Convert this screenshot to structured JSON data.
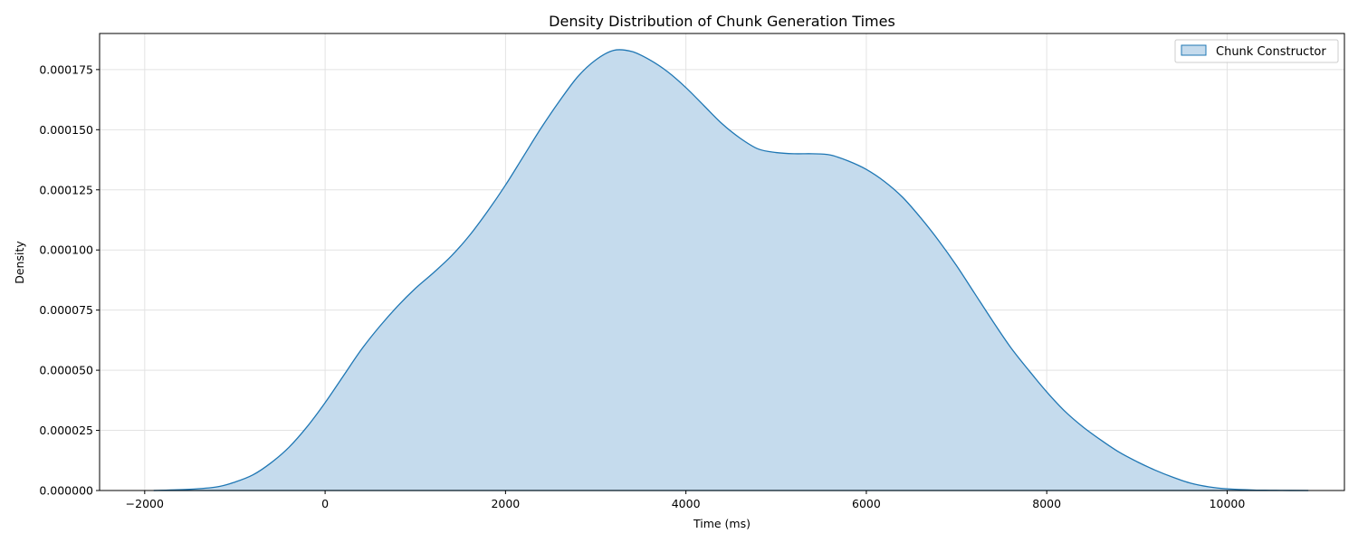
{
  "chart_data": {
    "type": "area",
    "title": "Density Distribution of Chunk Generation Times",
    "xlabel": "Time (ms)",
    "ylabel": "Density",
    "xlim": [
      -2500,
      11300
    ],
    "ylim": [
      0,
      0.00019
    ],
    "grid": true,
    "legend_position": "top-right",
    "x_ticks": [
      -2000,
      0,
      2000,
      4000,
      6000,
      8000,
      10000
    ],
    "x_tick_labels": [
      "−2000",
      "0",
      "2000",
      "4000",
      "6000",
      "8000",
      "10000"
    ],
    "y_ticks": [
      0,
      2.5e-05,
      5e-05,
      7.5e-05,
      0.0001,
      0.000125,
      0.00015,
      0.000175
    ],
    "y_tick_labels": [
      "0.000000",
      "0.000025",
      "0.000050",
      "0.000075",
      "0.000100",
      "0.000125",
      "0.000150",
      "0.000175"
    ],
    "series": [
      {
        "name": "Chunk Constructor",
        "color": "#1f77b4",
        "fill_color": "#c5dbed",
        "x": [
          -1900,
          -1500,
          -1200,
          -1000,
          -800,
          -600,
          -400,
          -200,
          0,
          200,
          400,
          600,
          800,
          1000,
          1200,
          1400,
          1600,
          1800,
          2000,
          2200,
          2400,
          2600,
          2800,
          3000,
          3200,
          3400,
          3600,
          3800,
          4000,
          4200,
          4400,
          4600,
          4800,
          5000,
          5200,
          5400,
          5600,
          5800,
          6000,
          6200,
          6400,
          6600,
          6800,
          7000,
          7200,
          7400,
          7600,
          7800,
          8000,
          8200,
          8400,
          8600,
          8800,
          9000,
          9200,
          9400,
          9600,
          9800,
          10000,
          10300,
          10600,
          10900
        ],
        "y": [
          0,
          5e-07,
          1.5e-06,
          3.5e-06,
          6.5e-06,
          1.15e-05,
          1.8e-05,
          2.65e-05,
          3.65e-05,
          4.75e-05,
          5.85e-05,
          6.8e-05,
          7.65e-05,
          8.4e-05,
          9.05e-05,
          9.75e-05,
          0.000106,
          0.000116,
          0.000127,
          0.000139,
          0.000151,
          0.000162,
          0.000172,
          0.000179,
          0.000183,
          0.0001825,
          0.000179,
          0.000174,
          0.0001675,
          0.00016,
          0.0001525,
          0.0001465,
          0.000142,
          0.0001405,
          0.00014,
          0.00014,
          0.0001395,
          0.000137,
          0.0001335,
          0.0001285,
          0.000122,
          0.0001135,
          0.000104,
          9.35e-05,
          8.2e-05,
          7.05e-05,
          5.95e-05,
          5e-05,
          4.1e-05,
          3.3e-05,
          2.65e-05,
          2.1e-05,
          1.6e-05,
          1.2e-05,
          8.5e-06,
          5.5e-06,
          3e-06,
          1.5e-06,
          7e-07,
          2e-07,
          5e-08,
          0
        ]
      }
    ]
  }
}
